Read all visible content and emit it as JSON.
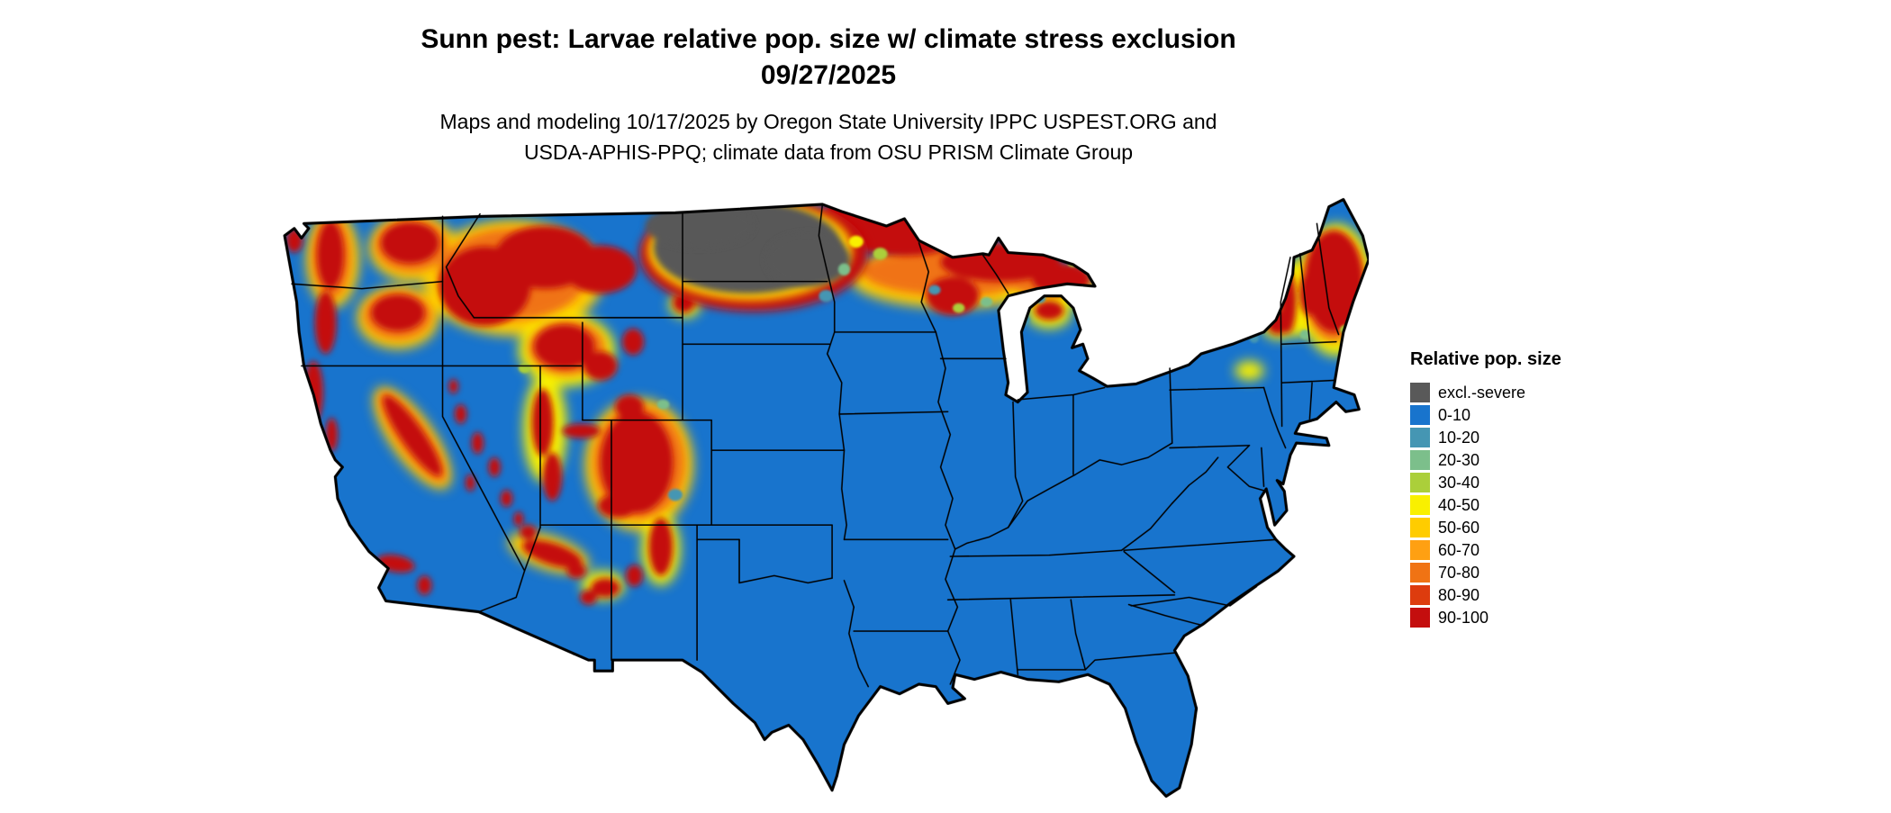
{
  "header": {
    "title_line1": "Sunn pest: Larvae relative pop. size w/ climate stress exclusion",
    "title_line2": "09/27/2025",
    "subtitle_line1": "Maps and modeling 10/17/2025 by Oregon State University IPPC USPEST.ORG and",
    "subtitle_line2": "USDA-APHIS-PPQ; climate data from OSU PRISM Climate Group"
  },
  "legend": {
    "title": "Relative pop. size",
    "items": [
      {
        "label": "excl.-severe",
        "color": "#595959"
      },
      {
        "label": "0-10",
        "color": "#1874CD"
      },
      {
        "label": "10-20",
        "color": "#4596B3"
      },
      {
        "label": "20-30",
        "color": "#7CBF8B"
      },
      {
        "label": "30-40",
        "color": "#ABCF3A"
      },
      {
        "label": "40-50",
        "color": "#F9F000"
      },
      {
        "label": "50-60",
        "color": "#FFCC00"
      },
      {
        "label": "60-70",
        "color": "#FFA012"
      },
      {
        "label": "70-80",
        "color": "#F07314"
      },
      {
        "label": "80-90",
        "color": "#DD3C0E"
      },
      {
        "label": "90-100",
        "color": "#C40E0E"
      }
    ]
  }
}
